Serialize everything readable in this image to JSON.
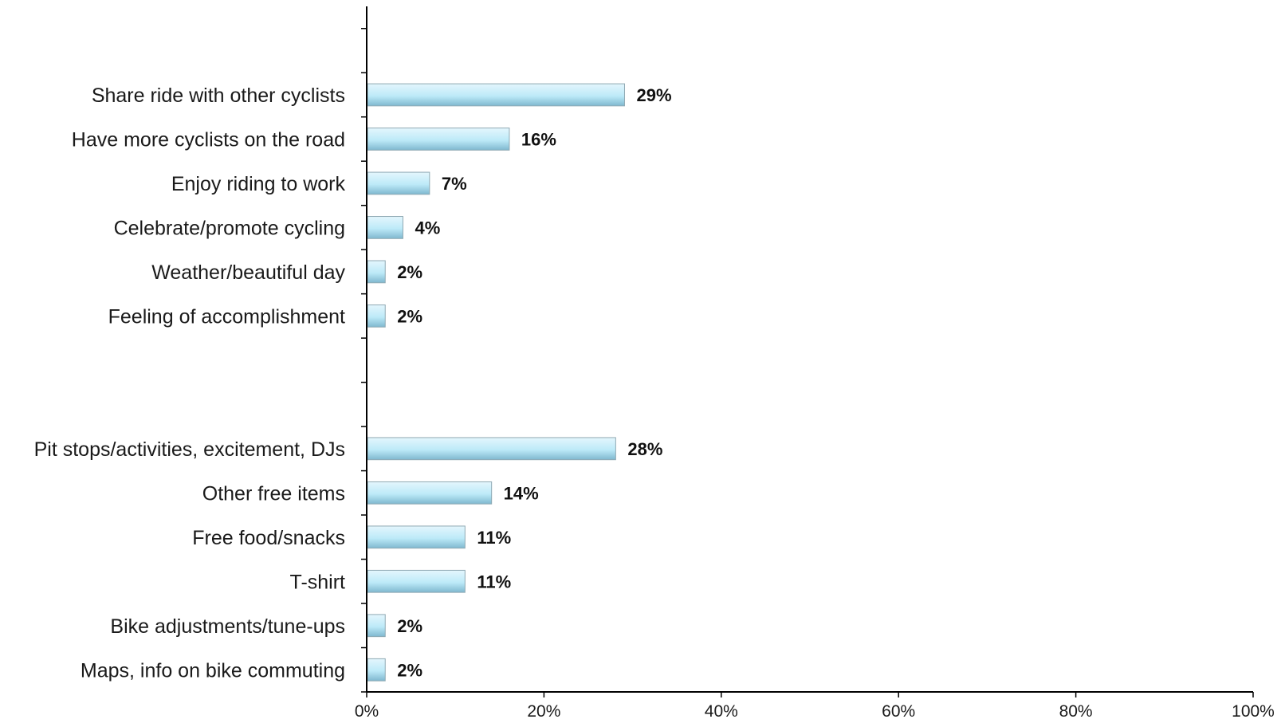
{
  "chart_data": {
    "type": "bar",
    "orientation": "horizontal",
    "categories": [
      "Share ride with other cyclists",
      "Have more cyclists on the road",
      "Enjoy riding to work",
      "Celebrate/promote cycling",
      "Weather/beautiful day",
      "Feeling of accomplishment",
      "",
      "",
      "Pit stops/activities, excitement, DJs",
      "Other free items",
      "Free food/snacks",
      "T-shirt",
      "Bike adjustments/tune-ups",
      "Maps, info on bike commuting"
    ],
    "values": [
      29,
      16,
      7,
      4,
      2,
      2,
      null,
      null,
      28,
      14,
      11,
      11,
      2,
      2
    ],
    "value_labels": [
      "29%",
      "16%",
      "7%",
      "4%",
      "2%",
      "2%",
      "",
      "",
      "28%",
      "14%",
      "11%",
      "11%",
      "2%",
      "2%"
    ],
    "xlim": [
      0,
      100
    ],
    "x_ticks": [
      0,
      20,
      40,
      60,
      80,
      100
    ],
    "x_tick_labels": [
      "0%",
      "20%",
      "40%",
      "60%",
      "80%",
      "100%"
    ],
    "title": "",
    "xlabel": "",
    "ylabel": "",
    "grid": false,
    "legend": "none",
    "colors": {
      "bar_light": "#e4f6fd",
      "bar_mid": "#bdeaf8",
      "bar_dark": "#7fb8cf",
      "bar_edge": "#8fa9b3",
      "axis": "#000000"
    }
  }
}
